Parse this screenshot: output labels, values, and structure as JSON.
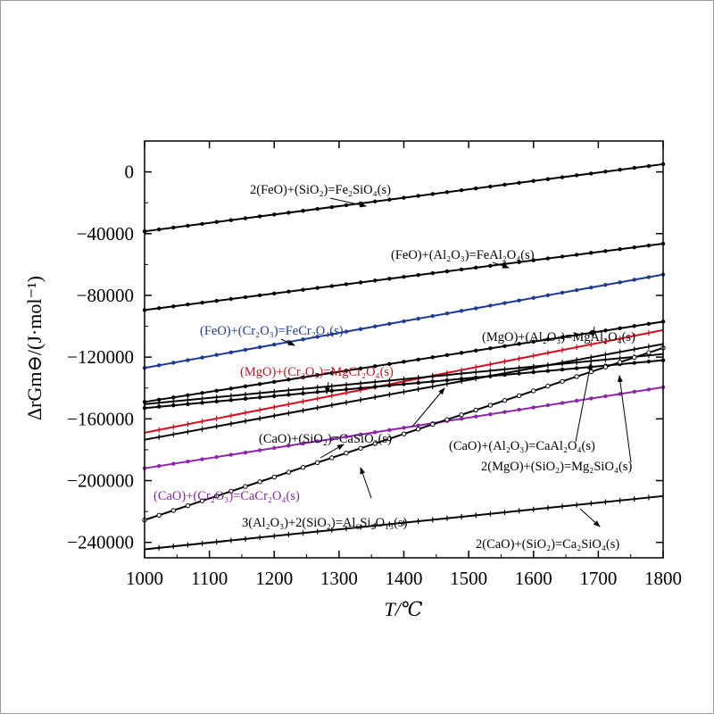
{
  "chart_data": {
    "type": "line",
    "xlabel": "T/℃",
    "ylabel": "ΔrGm⊖/(J·mol⁻¹)",
    "xlim": [
      1000,
      1800
    ],
    "ylim": [
      -250000,
      20000
    ],
    "x_ticks": [
      1000,
      1100,
      1200,
      1300,
      1400,
      1500,
      1600,
      1700,
      1800
    ],
    "y_ticks": [
      0,
      -40000,
      -80000,
      -120000,
      -160000,
      -200000,
      -240000
    ],
    "x_tick_labels": [
      "1000",
      "1100",
      "1200",
      "1300",
      "1400",
      "1500",
      "1600",
      "1700",
      "1800"
    ],
    "y_tick_labels": [
      "0",
      "−40000",
      "−80000",
      "−120000",
      "−160000",
      "−200000",
      "−240000"
    ],
    "grid": false,
    "series": [
      {
        "name": "2(FeO)+(SiO2)=Fe2SiO4(s)",
        "color": "#000000",
        "marker": "dot",
        "x": [
          1000,
          1800
        ],
        "y": [
          -38500,
          5000
        ]
      },
      {
        "name": "(FeO)+(Al2O3)=FeAl2O4(s)",
        "color": "#000000",
        "marker": "dot",
        "x": [
          1000,
          1800
        ],
        "y": [
          -89500,
          -46500
        ]
      },
      {
        "name": "(FeO)+(Cr2O3)=FeCr2O4(s)",
        "color": "#1f3a93",
        "marker": "dot",
        "x": [
          1000,
          1800
        ],
        "y": [
          -127000,
          -66500
        ]
      },
      {
        "name": "(MgO)+(Al2O3)=MgAl2O4(s)",
        "color": "#000000",
        "marker": "dot",
        "x": [
          1000,
          1800
        ],
        "y": [
          -149000,
          -97000
        ]
      },
      {
        "name": "(MgO)+(Cr2O3)=MgCr2O4(s)",
        "color": "#d01020",
        "marker": "tick",
        "x": [
          1000,
          1800
        ],
        "y": [
          -169000,
          -102500
        ]
      },
      {
        "name": "(CaO)+(SiO2)=CaSiO3(s)",
        "color": "#000000",
        "marker": "dot",
        "x": [
          1000,
          1800
        ],
        "y": [
          -153000,
          -122000
        ]
      },
      {
        "name": "(CaO)+(Al2O3)=CaAl2O4(s)",
        "color": "#000000",
        "marker": "tick",
        "x": [
          1000,
          1800
        ],
        "y": [
          -150500,
          -118000
        ]
      },
      {
        "name": "2(MgO)+(SiO2)=Mg2SiO4(s)",
        "color": "#000000",
        "marker": "tick",
        "x": [
          1000,
          1800
        ],
        "y": [
          -173500,
          -111500
        ]
      },
      {
        "name": "(CaO)+(Cr2O3)=CaCr2O4(s)",
        "color": "#8e24aa",
        "marker": "dot",
        "x": [
          1000,
          1800
        ],
        "y": [
          -192000,
          -139500
        ]
      },
      {
        "name": "3(Al2O3)+2(SiO2)=Al6Si2O13(s)",
        "color": "#000000",
        "marker": "circle",
        "x": [
          1000,
          1800
        ],
        "y": [
          -225500,
          -114000
        ]
      },
      {
        "name": "2(CaO)+(SiO2)=Ca2SiO4(s)",
        "color": "#000000",
        "marker": "tick",
        "x": [
          1000,
          1800
        ],
        "y": [
          -244500,
          -210000
        ]
      }
    ]
  },
  "labels": [
    {
      "text": "2(FeO)+(SiO₂)=Fe₂SiO₄(s)",
      "color": "#000000"
    },
    {
      "text": "(FeO)+(Al₂O₃)=FeAl₂O₄(s)",
      "color": "#000000"
    },
    {
      "text": "(FeO)+(Cr₂O₃)=FeCr₂O₄(s)",
      "color": "#1f3a93"
    },
    {
      "text": "(MgO)+(Al₂O₃)=MgAl₂O₄(s)",
      "color": "#000000"
    },
    {
      "text": "(MgO)+(Cr₂O₃)=MgCr₂O₄(s)",
      "color": "#d01020"
    },
    {
      "text": "(CaO)+(SiO₂)=CaSiO₃(s)",
      "color": "#000000"
    },
    {
      "text": "(CaO)+(Al₂O₃)=CaAl₂O₄(s)",
      "color": "#000000"
    },
    {
      "text": "2(MgO)+(SiO₂)=Mg₂SiO₄(s)",
      "color": "#000000"
    },
    {
      "text": "(CaO)+(Cr₂O₃)=CaCr₂O₄(s)",
      "color": "#8e24aa"
    },
    {
      "text": "3(Al₂O₃)+2(SiO₂)=Al₆Si₂O₁₃(s)",
      "color": "#000000"
    },
    {
      "text": "2(CaO)+(SiO₂)=Ca₂SiO₄(s)",
      "color": "#000000"
    }
  ]
}
